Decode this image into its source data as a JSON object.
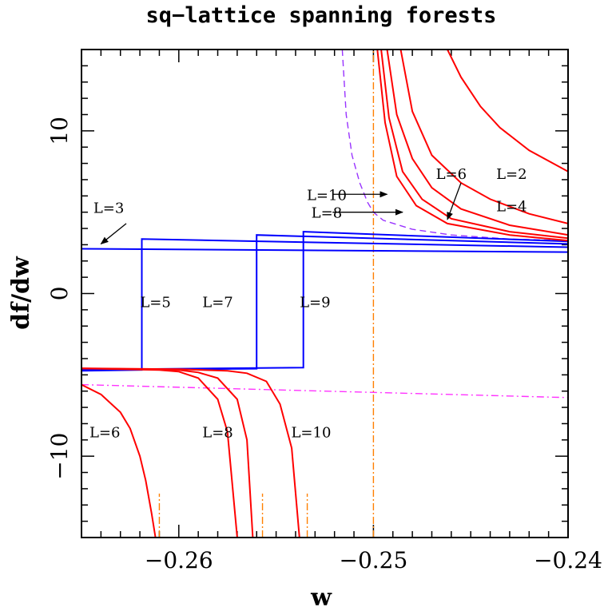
{
  "chart_data": {
    "type": "line",
    "title": "sq−lattice spanning forests",
    "xlabel": "w",
    "ylabel": "df/dw",
    "xlim": [
      -0.265,
      -0.24
    ],
    "ylim": [
      -15,
      15
    ],
    "x_ticks": [
      -0.26,
      -0.25,
      -0.24
    ],
    "x_tick_labels": [
      "−0.26",
      "−0.25",
      "−0.24"
    ],
    "y_ticks": [
      -10,
      0,
      10
    ],
    "y_tick_labels": [
      "−10",
      "0",
      "10"
    ],
    "grid": false,
    "colors": {
      "even_L": "#ff0000",
      "odd_L": "#0000ff",
      "dashed_curve": "#9933ff",
      "dashdot_curve": "#ff33ff",
      "vertical_lines": "#ff8000"
    },
    "red_curves_upper": [
      {
        "x": [
          -0.2462,
          -0.2455,
          -0.2445,
          -0.2435,
          -0.242,
          -0.24
        ],
        "y": [
          15,
          13.3,
          11.5,
          10.2,
          8.8,
          7.5
        ]
      },
      {
        "x": [
          -0.2486,
          -0.248,
          -0.247,
          -0.2455,
          -0.244,
          -0.242,
          -0.24
        ],
        "y": [
          15,
          11.2,
          8.5,
          6.8,
          5.8,
          4.9,
          4.3
        ]
      },
      {
        "x": [
          -0.2493,
          -0.2488,
          -0.248,
          -0.247,
          -0.2455,
          -0.243,
          -0.24
        ],
        "y": [
          15,
          11.0,
          8.3,
          6.5,
          5.2,
          4.2,
          3.6
        ]
      },
      {
        "x": [
          -0.2496,
          -0.2492,
          -0.2485,
          -0.2475,
          -0.246,
          -0.243,
          -0.24
        ],
        "y": [
          15,
          10.8,
          7.5,
          5.8,
          4.6,
          3.8,
          3.4
        ]
      },
      {
        "x": [
          -0.2498,
          -0.2494,
          -0.2488,
          -0.2478,
          -0.2462,
          -0.243,
          -0.24
        ],
        "y": [
          15,
          10.5,
          7.2,
          5.4,
          4.3,
          3.6,
          3.25
        ]
      }
    ],
    "red_curves_lower": [
      {
        "x": [
          -0.265,
          -0.263,
          -0.261,
          -0.26,
          -0.259,
          -0.258,
          -0.2575,
          -0.257
        ],
        "y": [
          -4.6,
          -4.65,
          -4.7,
          -4.8,
          -5.2,
          -6.5,
          -8.5,
          -15
        ]
      },
      {
        "x": [
          -0.265,
          -0.262,
          -0.26,
          -0.259,
          -0.258,
          -0.257,
          -0.2565,
          -0.2562
        ],
        "y": [
          -4.6,
          -4.65,
          -4.7,
          -4.85,
          -5.2,
          -6.5,
          -9.0,
          -15
        ]
      },
      {
        "x": [
          -0.265,
          -0.26,
          -0.2575,
          -0.2565,
          -0.2555,
          -0.2548,
          -0.2542,
          -0.2538
        ],
        "y": [
          -4.6,
          -4.65,
          -4.75,
          -4.9,
          -5.4,
          -6.8,
          -9.5,
          -15
        ]
      },
      {
        "x": [
          -0.265,
          -0.264,
          -0.263,
          -0.2625,
          -0.262,
          -0.2617,
          -0.2614,
          -0.2612
        ],
        "y": [
          -5.6,
          -6.2,
          -7.3,
          -8.3,
          -10.0,
          -11.5,
          -13.5,
          -15
        ]
      }
    ],
    "blue_curves": [
      {
        "x": [
          -0.265,
          -0.24
        ],
        "y": [
          2.75,
          2.55
        ]
      },
      {
        "x": [
          -0.265,
          -0.2619,
          -0.2619,
          -0.24
        ],
        "y": [
          -4.75,
          -4.7,
          3.35,
          2.85
        ]
      },
      {
        "x": [
          -0.265,
          -0.256,
          -0.256,
          -0.24
        ],
        "y": [
          -4.7,
          -4.62,
          3.6,
          3.05
        ]
      },
      {
        "x": [
          -0.265,
          -0.2536,
          -0.2536,
          -0.24
        ],
        "y": [
          -4.68,
          -4.55,
          3.8,
          3.2
        ]
      }
    ],
    "dashed_curve": {
      "x": [
        -0.2516,
        -0.2514,
        -0.2511,
        -0.2507,
        -0.2503,
        -0.25,
        -0.2495,
        -0.248,
        -0.246,
        -0.243,
        -0.24
      ],
      "y": [
        15,
        11.0,
        8.5,
        6.8,
        5.6,
        5.0,
        4.5,
        3.95,
        3.6,
        3.35,
        3.25
      ]
    },
    "dashdot_curve": {
      "x": [
        -0.265,
        -0.24
      ],
      "y": [
        -5.6,
        -6.4
      ]
    },
    "vertical_lines": [
      {
        "x": -0.25,
        "y_from": -15,
        "y_to": 15
      },
      {
        "x": -0.261,
        "y_from": -15,
        "y_to": -12.3
      },
      {
        "x": -0.2557,
        "y_from": -15,
        "y_to": -12.3
      },
      {
        "x": -0.2534,
        "y_from": -15,
        "y_to": -12.3
      }
    ],
    "labels": [
      {
        "text": "L=2",
        "x": -0.2429,
        "y": 7.3
      },
      {
        "text": "L=4",
        "x": -0.2429,
        "y": 5.3
      },
      {
        "text": "L=6",
        "x": -0.246,
        "y": 7.3
      },
      {
        "text": "L=10",
        "x": -0.2524,
        "y": 6.0
      },
      {
        "text": "L=8",
        "x": -0.2524,
        "y": 4.9
      },
      {
        "text": "L=3",
        "x": -0.2636,
        "y": 5.2
      },
      {
        "text": "L=5",
        "x": -0.2612,
        "y": -0.6
      },
      {
        "text": "L=7",
        "x": -0.258,
        "y": -0.6
      },
      {
        "text": "L=9",
        "x": -0.253,
        "y": -0.6
      },
      {
        "text": "L=6",
        "x": -0.2638,
        "y": -8.6
      },
      {
        "text": "L=8",
        "x": -0.258,
        "y": -8.6
      },
      {
        "text": "L=10",
        "x": -0.2532,
        "y": -8.6
      }
    ],
    "arrows": [
      {
        "from": [
          -0.2521,
          6.1
        ],
        "to": [
          -0.2493,
          6.1
        ]
      },
      {
        "from": [
          -0.2521,
          5.0
        ],
        "to": [
          -0.2485,
          5.0
        ]
      },
      {
        "from": [
          -0.2455,
          6.8
        ],
        "to": [
          -0.2462,
          4.55
        ]
      },
      {
        "from": [
          -0.2627,
          4.3
        ],
        "to": [
          -0.264,
          3.05
        ]
      }
    ]
  }
}
